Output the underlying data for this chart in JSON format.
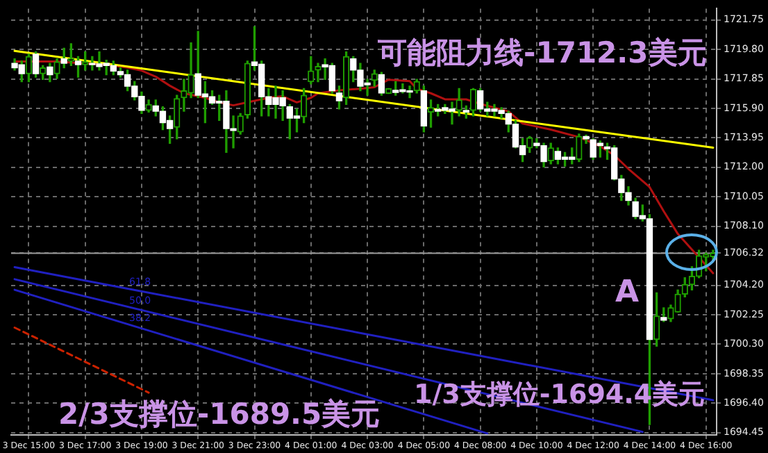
{
  "chart_data": {
    "type": "candlestick",
    "grid": true,
    "categories": [
      null,
      null,
      "3 Dec 15:00",
      null,
      null,
      null,
      null,
      null,
      null,
      null,
      "3 Dec 17:00",
      null,
      null,
      null,
      null,
      null,
      null,
      null,
      "3 Dec 19:00",
      null,
      null,
      null,
      null,
      null,
      null,
      null,
      "3 Dec 21:00",
      null,
      null,
      null,
      null,
      null,
      null,
      null,
      "3 Dec 23:00",
      null,
      null,
      null,
      null,
      null,
      null,
      null,
      "4 Dec 01:00",
      null,
      null,
      null,
      null,
      null,
      null,
      null,
      "4 Dec 03:00",
      null,
      null,
      null,
      null,
      null,
      null,
      null,
      "4 Dec 05:00",
      null,
      null,
      null,
      null,
      null,
      null,
      null,
      "4 Dec 08:00",
      null,
      null,
      null,
      null,
      null,
      null,
      null,
      "4 Dec 10:00",
      null,
      null,
      null,
      null,
      null,
      null,
      null,
      "4 Dec 12:00",
      null,
      null,
      null,
      null,
      null,
      null,
      null,
      "4 Dec 14:00",
      null,
      null,
      null,
      null,
      null,
      null,
      null,
      "4 Dec 16:00",
      null
    ],
    "ohlc": [
      [
        1718.88,
        1719.18,
        1718.43,
        1718.58
      ],
      [
        1718.79,
        1719.03,
        1717.67,
        1718.19
      ],
      [
        1718.19,
        1719.49,
        1717.67,
        1719.33
      ],
      [
        1719.49,
        1719.64,
        1717.97,
        1718.19
      ],
      [
        1718.19,
        1718.73,
        1717.82,
        1718.58
      ],
      [
        1718.64,
        1718.88,
        1717.67,
        1718.13
      ],
      [
        1718.19,
        1719.18,
        1717.88,
        1718.97
      ],
      [
        1719.18,
        1719.88,
        1718.58,
        1718.88
      ],
      [
        1719.03,
        1720.18,
        1718.73,
        1719.18
      ],
      [
        1719.03,
        1719.33,
        1717.97,
        1718.79
      ],
      [
        1718.79,
        1719.64,
        1718.43,
        1718.97
      ],
      [
        1718.88,
        1719.33,
        1718.43,
        1718.79
      ],
      [
        1718.85,
        1719.64,
        1718.43,
        1718.67
      ],
      [
        1718.88,
        1719.09,
        1718.13,
        1718.73
      ],
      [
        1718.73,
        1719.03,
        1718.13,
        1718.37
      ],
      [
        1718.34,
        1718.58,
        1717.97,
        1718.13
      ],
      [
        1718.13,
        1718.43,
        1717.07,
        1717.37
      ],
      [
        1717.37,
        1717.67,
        1716.46,
        1716.67
      ],
      [
        1716.7,
        1716.98,
        1715.56,
        1715.77
      ],
      [
        1715.77,
        1716.46,
        1715.65,
        1716.16
      ],
      [
        1716.07,
        1716.46,
        1715.4,
        1715.71
      ],
      [
        1715.71,
        1716.01,
        1714.5,
        1714.95
      ],
      [
        1715.1,
        1715.4,
        1713.59,
        1714.56
      ],
      [
        1714.65,
        1716.77,
        1713.89,
        1716.55
      ],
      [
        1716.61,
        1717.82,
        1715.71,
        1717.07
      ],
      [
        1716.92,
        1720.24,
        1716.61,
        1718.13
      ],
      [
        1718.19,
        1721.0,
        1716.61,
        1716.77
      ],
      [
        1716.86,
        1717.67,
        1714.95,
        1716.67
      ],
      [
        1716.67,
        1717.07,
        1716.16,
        1716.25
      ],
      [
        1716.37,
        1716.77,
        1715.1,
        1716.25
      ],
      [
        1716.37,
        1717.07,
        1712.99,
        1714.56
      ],
      [
        1714.56,
        1715.4,
        1713.29,
        1714.44
      ],
      [
        1714.35,
        1715.56,
        1714.2,
        1715.4
      ],
      [
        1715.47,
        1719.03,
        1715.25,
        1718.88
      ],
      [
        1718.97,
        1721.3,
        1718.43,
        1718.73
      ],
      [
        1718.82,
        1719.03,
        1715.4,
        1716.67
      ],
      [
        1716.67,
        1717.22,
        1715.4,
        1716.16
      ],
      [
        1716.61,
        1717.37,
        1715.25,
        1716.16
      ],
      [
        1716.61,
        1717.07,
        1715.1,
        1716.07
      ],
      [
        1716.01,
        1716.16,
        1713.89,
        1715.25
      ],
      [
        1715.4,
        1715.86,
        1714.35,
        1715.25
      ],
      [
        1715.34,
        1717.22,
        1714.95,
        1716.77
      ],
      [
        1717.67,
        1719.33,
        1717.52,
        1718.37
      ],
      [
        1718.43,
        1718.88,
        1717.67,
        1718.67
      ],
      [
        1718.79,
        1719.18,
        1717.82,
        1718.64
      ],
      [
        1718.73,
        1718.88,
        1716.92,
        1717.07
      ],
      [
        1716.92,
        1717.37,
        1715.86,
        1716.4
      ],
      [
        1716.61,
        1719.64,
        1716.16,
        1719.33
      ],
      [
        1719.18,
        1719.33,
        1717.67,
        1718.43
      ],
      [
        1718.43,
        1718.88,
        1717.07,
        1717.37
      ],
      [
        1717.58,
        1717.82,
        1716.77,
        1717.46
      ],
      [
        1717.76,
        1718.43,
        1717.37,
        1718.19
      ],
      [
        1718.13,
        1718.28,
        1716.77,
        1716.92
      ],
      [
        1716.9,
        1717.22,
        1716.88,
        1717.2
      ],
      [
        1717.1,
        1717.67,
        1716.77,
        1716.95
      ],
      [
        1717.13,
        1717.52,
        1716.92,
        1717.01
      ],
      [
        1717.07,
        1717.37,
        1716.61,
        1716.98
      ],
      [
        1717.07,
        1717.82,
        1716.92,
        1717.67
      ],
      [
        1717.07,
        1717.37,
        1714.35,
        1714.74
      ],
      [
        1715.65,
        1716.46,
        1714.65,
        1715.95
      ],
      [
        1715.83,
        1716.16,
        1715.4,
        1715.71
      ],
      [
        1715.95,
        1716.16,
        1715.56,
        1715.77
      ],
      [
        1715.86,
        1716.31,
        1714.86,
        1715.71
      ],
      [
        1715.77,
        1717.22,
        1715.4,
        1716.46
      ],
      [
        1715.77,
        1716.07,
        1715.25,
        1715.65
      ],
      [
        1715.77,
        1717.22,
        1715.4,
        1717.16
      ],
      [
        1717.07,
        1717.22,
        1715.71,
        1715.86
      ],
      [
        1715.86,
        1716.31,
        1715.4,
        1715.71
      ],
      [
        1715.86,
        1716.16,
        1715.4,
        1715.71
      ],
      [
        1715.77,
        1715.95,
        1715.25,
        1715.56
      ],
      [
        1715.56,
        1715.71,
        1714.35,
        1714.86
      ],
      [
        1714.86,
        1715.1,
        1713.29,
        1713.35
      ],
      [
        1713.44,
        1713.89,
        1712.38,
        1712.84
      ],
      [
        1713.29,
        1714.04,
        1712.99,
        1713.95
      ],
      [
        1713.59,
        1713.89,
        1713.29,
        1713.44
      ],
      [
        1713.44,
        1713.59,
        1712.02,
        1712.38
      ],
      [
        1712.44,
        1713.59,
        1712.23,
        1713.29
      ],
      [
        1713.05,
        1713.29,
        1712.23,
        1712.53
      ],
      [
        1712.68,
        1712.99,
        1712.08,
        1712.53
      ],
      [
        1712.68,
        1713.29,
        1712.23,
        1712.53
      ],
      [
        1712.53,
        1714.2,
        1712.38,
        1714.04
      ],
      [
        1714.04,
        1714.14,
        1713.59,
        1713.89
      ],
      [
        1713.83,
        1713.89,
        1712.53,
        1712.68
      ],
      [
        1713.59,
        1713.74,
        1712.68,
        1713.44
      ],
      [
        1713.35,
        1713.59,
        1712.53,
        1713.23
      ],
      [
        1713.29,
        1713.44,
        1711.17,
        1711.23
      ],
      [
        1711.23,
        1711.47,
        1709.81,
        1710.33
      ],
      [
        1710.33,
        1710.72,
        1709.51,
        1709.81
      ],
      [
        1709.72,
        1709.96,
        1708.6,
        1708.75
      ],
      [
        1708.81,
        1709.51,
        1708.45,
        1708.6
      ],
      [
        1708.6,
        1708.87,
        1694.99,
        1700.62
      ],
      [
        1700.62,
        1703.7,
        1700.17,
        1702.16
      ],
      [
        1702.07,
        1702.71,
        1701.8,
        1701.89
      ],
      [
        1701.98,
        1702.89,
        1701.8,
        1702.71
      ],
      [
        1702.43,
        1703.89,
        1702.43,
        1703.61
      ],
      [
        1703.61,
        1704.7,
        1703.43,
        1704.25
      ],
      [
        1704.25,
        1705.43,
        1703.89,
        1704.79
      ],
      [
        1704.79,
        1706.52,
        1704.7,
        1706.15
      ],
      [
        1706.06,
        1706.33,
        1705.16,
        1706.24
      ],
      [
        1706.1,
        1706.52,
        1705.88,
        1706.32
      ]
    ],
    "series": [
      {
        "type": "line",
        "color": "#ffff00",
        "values": [
          1719.7,
          null,
          null,
          null,
          null,
          null,
          null,
          null,
          null,
          null,
          null,
          null,
          null,
          null,
          null,
          null,
          null,
          null,
          null,
          null,
          null,
          null,
          null,
          null,
          null,
          null,
          null,
          null,
          null,
          null,
          null,
          null,
          null,
          null,
          null,
          null,
          null,
          null,
          null,
          null,
          null,
          null,
          null,
          null,
          null,
          null,
          null,
          null,
          null,
          null,
          null,
          null,
          null,
          null,
          null,
          null,
          null,
          null,
          null,
          null,
          null,
          null,
          null,
          null,
          null,
          null,
          null,
          null,
          null,
          null,
          null,
          null,
          null,
          null,
          null,
          null,
          null,
          null,
          null,
          null,
          null,
          null,
          null,
          null,
          null,
          null,
          null,
          null,
          null,
          null,
          null,
          null,
          null,
          null,
          null,
          null,
          null,
          null,
          null,
          1713.3
        ]
      },
      {
        "type": "line",
        "color": "#b01010",
        "values": [
          1719.0,
          null,
          null,
          1719.0,
          null,
          null,
          1719.0,
          null,
          null,
          1718.9,
          null,
          null,
          null,
          1718.8,
          null,
          null,
          1718.6,
          null,
          1718.4,
          null,
          1718.0,
          null,
          1717.4,
          null,
          1716.9,
          null,
          null,
          1716.6,
          null,
          1716.3,
          null,
          1716.1,
          null,
          1716.3,
          null,
          null,
          1716.6,
          null,
          1716.7,
          null,
          1716.3,
          null,
          1716.6,
          1716.9,
          null,
          null,
          1717.1,
          null,
          null,
          1717.2,
          null,
          1717.3,
          null,
          1717.8,
          null,
          null,
          1717.7,
          1717.2,
          null,
          1716.9,
          null,
          1716.5,
          null,
          null,
          1716.5,
          null,
          1716.2,
          null,
          null,
          null,
          1715.7,
          null,
          1714.9,
          null,
          null,
          null,
          1714.5,
          null,
          null,
          null,
          1714.0,
          null,
          null,
          1713.4,
          null,
          1712.8,
          null,
          1711.9,
          null,
          null,
          1710.7,
          null,
          1709.1,
          null,
          1707.6,
          null,
          null,
          null,
          null,
          1705.0
        ]
      },
      {
        "type": "line",
        "color": "#2020c0",
        "name": "61.8",
        "values": [
          1705.4,
          null,
          null,
          null,
          null,
          null,
          null,
          null,
          null,
          null,
          null,
          null,
          null,
          null,
          null,
          null,
          null,
          null,
          null,
          null,
          null,
          null,
          null,
          null,
          null,
          null,
          null,
          null,
          null,
          null,
          null,
          null,
          null,
          null,
          null,
          null,
          null,
          null,
          null,
          null,
          null,
          null,
          null,
          null,
          null,
          null,
          null,
          null,
          null,
          null,
          null,
          null,
          null,
          null,
          null,
          null,
          null,
          null,
          null,
          null,
          null,
          null,
          null,
          null,
          null,
          null,
          null,
          null,
          null,
          null,
          null,
          null,
          null,
          null,
          null,
          null,
          null,
          null,
          null,
          null,
          null,
          null,
          null,
          null,
          null,
          null,
          null,
          null,
          null,
          null,
          null,
          null,
          null,
          null,
          null,
          null,
          null,
          null,
          null,
          1696.6
        ]
      },
      {
        "type": "line",
        "color": "#2020c0",
        "name": "50.0",
        "values": [
          1704.6,
          null,
          null,
          null,
          null,
          null,
          null,
          null,
          null,
          null,
          null,
          null,
          null,
          null,
          null,
          null,
          null,
          null,
          null,
          null,
          null,
          null,
          null,
          null,
          null,
          null,
          null,
          null,
          null,
          null,
          null,
          null,
          null,
          null,
          null,
          null,
          null,
          null,
          null,
          null,
          null,
          null,
          null,
          null,
          null,
          null,
          null,
          null,
          null,
          null,
          null,
          null,
          null,
          null,
          null,
          null,
          null,
          null,
          null,
          null,
          null,
          null,
          null,
          null,
          null,
          null,
          null,
          null,
          null,
          null,
          null,
          null,
          null,
          null,
          null,
          null,
          null,
          null,
          null,
          null,
          null,
          null,
          null,
          null,
          null,
          null,
          null,
          null,
          null,
          1694.5,
          null,
          null,
          null,
          null,
          null,
          null,
          null,
          null,
          null,
          null
        ]
      },
      {
        "type": "line",
        "color": "#2020c0",
        "name": "38.2",
        "values": [
          1703.9,
          null,
          null,
          null,
          null,
          null,
          null,
          null,
          null,
          null,
          null,
          null,
          null,
          null,
          null,
          null,
          null,
          null,
          null,
          null,
          null,
          null,
          null,
          null,
          null,
          null,
          null,
          null,
          null,
          null,
          null,
          null,
          null,
          null,
          null,
          null,
          null,
          null,
          null,
          null,
          null,
          null,
          null,
          null,
          null,
          null,
          null,
          null,
          null,
          null,
          null,
          null,
          null,
          null,
          null,
          null,
          null,
          null,
          null,
          null,
          null,
          null,
          null,
          null,
          null,
          null,
          null,
          1694.4,
          null,
          null,
          null,
          null,
          null,
          null,
          null,
          null,
          null,
          null,
          null,
          null,
          null,
          null,
          null,
          null,
          null,
          null,
          null,
          null,
          null,
          null,
          null,
          null,
          null,
          null,
          null,
          null,
          null,
          null,
          null,
          null
        ]
      },
      {
        "type": "line",
        "color": "#cc2200",
        "line_style": "dashed",
        "values": [
          1701.4,
          null,
          null,
          null,
          null,
          null,
          null,
          null,
          null,
          null,
          null,
          null,
          null,
          null,
          null,
          null,
          null,
          null,
          null,
          1697.1,
          null,
          null,
          null,
          null,
          null,
          null,
          null,
          null,
          null,
          null,
          null,
          null,
          null,
          null,
          null,
          null,
          null,
          null,
          null,
          null,
          null,
          null,
          null,
          null,
          null,
          null,
          null,
          null,
          null,
          null,
          null,
          null,
          null,
          null,
          null,
          null,
          null,
          null,
          null,
          null,
          null,
          null,
          null,
          null,
          null,
          null,
          null,
          null,
          null,
          null,
          null,
          null,
          null,
          null,
          null,
          null,
          null,
          null,
          null,
          null,
          null,
          null,
          null,
          null,
          null,
          null,
          null,
          null,
          null,
          null,
          null,
          null,
          null,
          null,
          null,
          null,
          null,
          null,
          null,
          null
        ]
      }
    ],
    "ylim": [
      1694.3,
      1722.5
    ],
    "yticks": [
      1721.75,
      {
        "value": 1719.8,
        "label": "1719.80"
      },
      1717.85,
      {
        "value": 1715.9,
        "label": "1715.90"
      },
      1713.95,
      {
        "value": 1712,
        "label": "1712.00"
      },
      1710.05,
      {
        "value": 1708.1,
        "label": "1708.10"
      },
      1706.32,
      {
        "value": 1704.2,
        "label": "1704.20"
      },
      1702.25,
      {
        "value": 1700.3,
        "label": "1700.30"
      },
      1698.35,
      {
        "value": 1696.4,
        "label": "1696.40"
      },
      1694.45
    ],
    "ref_lines": [
      {
        "axis": "y",
        "value": 1706.32,
        "color": "#9a9a9a"
      }
    ],
    "annotations": [
      "可能阻力线-1712.3美元",
      "A",
      "1/3支撑位-1694.4美元",
      "2/3支撑位-1689.5美元"
    ]
  }
}
